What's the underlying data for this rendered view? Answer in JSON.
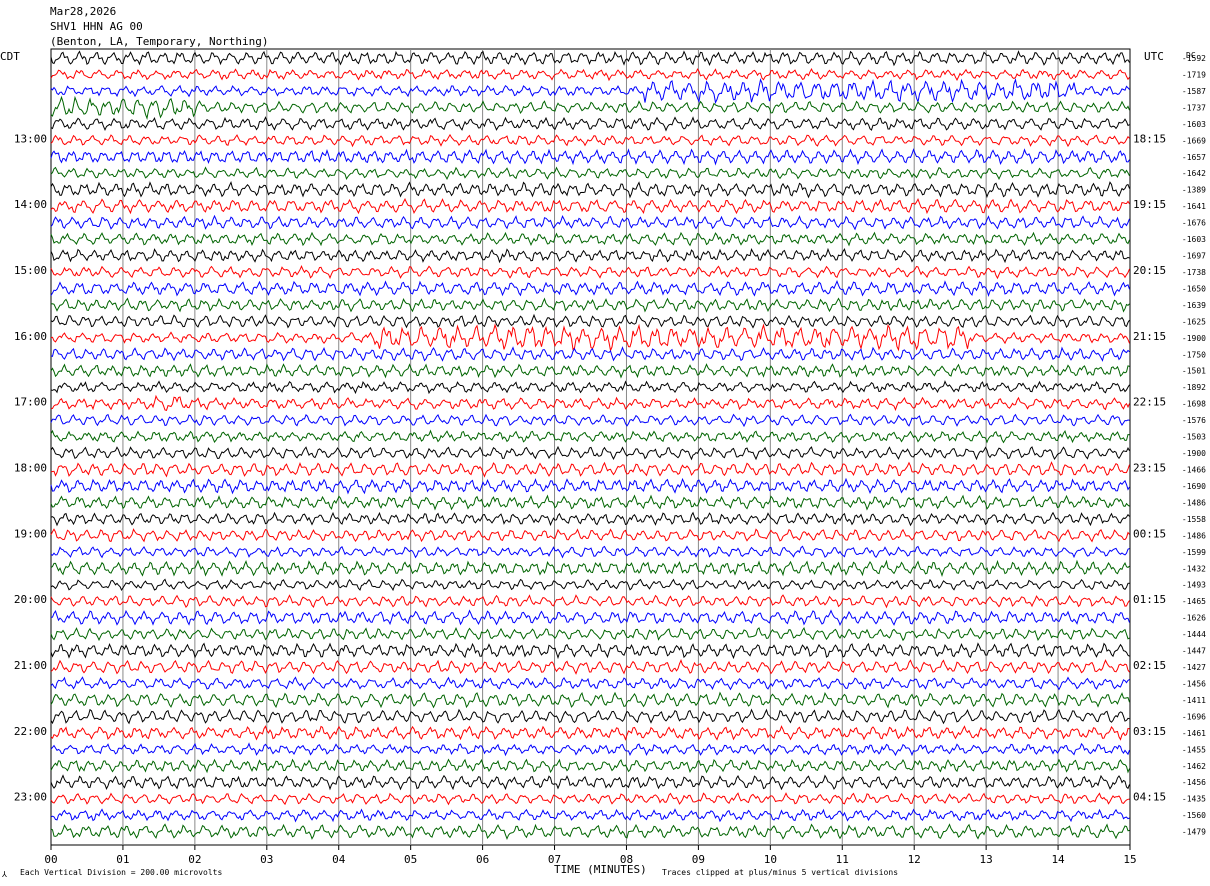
{
  "header": {
    "date": "Mar28,2026",
    "station": "SHV1 HHN AG 00",
    "location": "(Benton, LA, Temporary, Northing)"
  },
  "left_axis_label": "CDT",
  "right_axis_label": "UTC",
  "dc_label": "DC",
  "footer": {
    "scale_note": "Each Vertical Division =  200.00 microvolts",
    "xlabel": "TIME (MINUTES)",
    "clip_note": "Traces clipped at plus/minus 5 vertical divisions",
    "corner_mark": "⅄"
  },
  "colors": [
    "#000000",
    "#ff0000",
    "#0000ff",
    "#006400"
  ],
  "chart_data": {
    "type": "line",
    "xlabel": "TIME (MINUTES)",
    "xlim": [
      0,
      15
    ],
    "x_ticks": [
      "00",
      "01",
      "02",
      "03",
      "04",
      "05",
      "06",
      "07",
      "08",
      "09",
      "10",
      "11",
      "12",
      "13",
      "14",
      "15"
    ],
    "left_ticks": [
      "13:00",
      "14:00",
      "15:00",
      "16:00",
      "17:00",
      "18:00",
      "19:00",
      "20:00",
      "21:00",
      "22:00",
      "23:00"
    ],
    "right_ticks": [
      "18:15",
      "19:15",
      "20:15",
      "21:15",
      "22:15",
      "23:15",
      "00:15",
      "01:15",
      "02:15",
      "03:15",
      "04:15"
    ],
    "trace_count": 48,
    "first_tick_trace_index": 5,
    "traces_per_hour": 4,
    "dc_offsets": [
      "-1592",
      "-1719",
      "-1587",
      "-1737",
      "-1603",
      "-1669",
      "-1657",
      "-1642",
      "-1389",
      "-1641",
      "-1676",
      "-1603",
      "-1697",
      "-1738",
      "-1650",
      "-1639",
      "-1625",
      "-1900",
      "-1750",
      "-1501",
      "-1892",
      "-1698",
      "-1576",
      "-1503",
      "-1900",
      "-1466",
      "-1690",
      "-1486",
      "-1558",
      "-1486",
      "-1599",
      "-1432",
      "-1493",
      "-1465",
      "-1626",
      "-1444",
      "-1447",
      "-1427",
      "-1456",
      "-1411",
      "-1696",
      "-1461",
      "-1455",
      "-1462",
      "-1456",
      "-1435",
      "-1560",
      "-1479"
    ],
    "grid": true
  }
}
